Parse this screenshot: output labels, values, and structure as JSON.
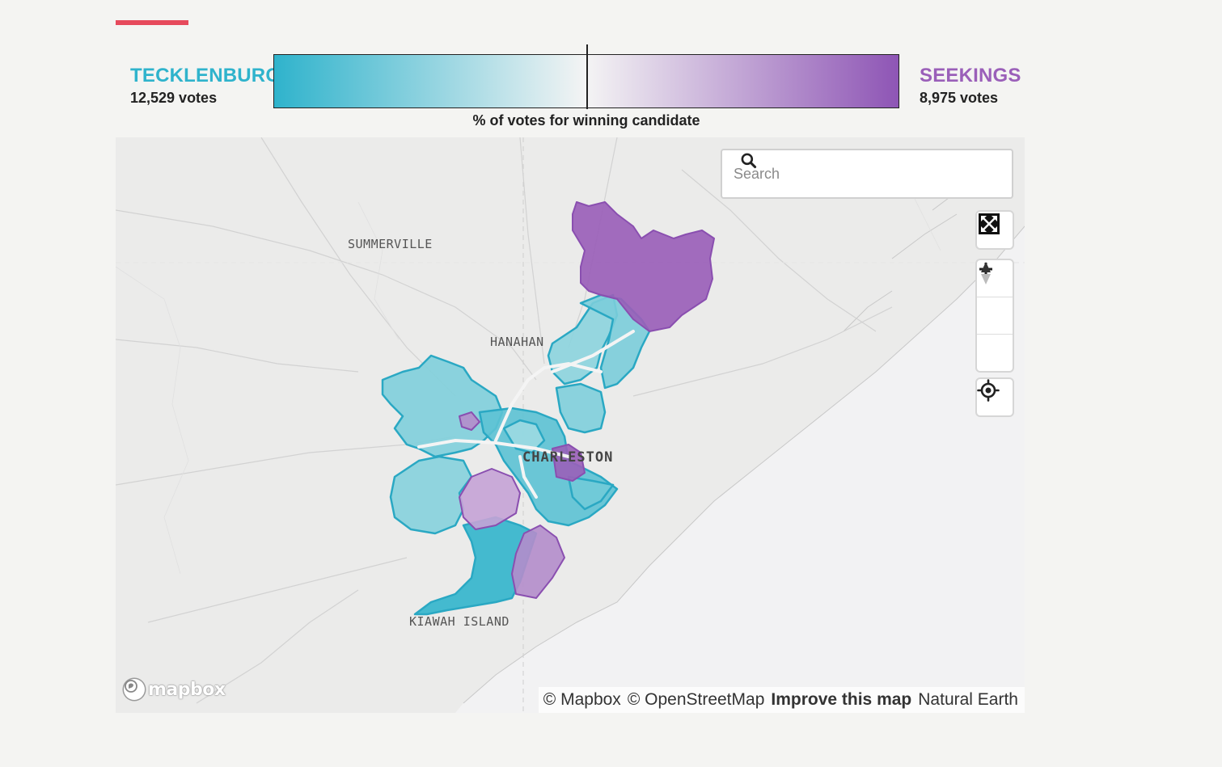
{
  "candidates": {
    "left": {
      "name": "TECKLENBURG",
      "votes": "12,529 votes",
      "color": "#2fb3cc"
    },
    "right": {
      "name": "SEEKINGS",
      "votes": "8,975 votes",
      "color": "#9a5fb9"
    }
  },
  "legend": {
    "caption": "% of votes for winning candidate",
    "colors": {
      "left_strong": "#2fb3cc",
      "neutral": "#f4f4f4",
      "right_strong": "#8e55b5"
    }
  },
  "map": {
    "search": {
      "placeholder": "Search",
      "value": ""
    },
    "places": {
      "summerville": "SUMMERVILLE",
      "hanahan": "HANAHAN",
      "charleston": "CHARLESTON",
      "kiawah": "KIAWAH ISLAND"
    },
    "controls": {
      "fullscreen_icon": "fullscreen-icon",
      "zoom_in_icon": "zoom-in-icon",
      "zoom_out_icon": "zoom-out-icon",
      "compass_icon": "compass-icon",
      "geolocate_icon": "geolocate-icon"
    },
    "logo": "mapbox",
    "attribution": {
      "mapbox": "© Mapbox",
      "osm": "© OpenStreetMap",
      "improve": "Improve this map",
      "natural_earth": "Natural Earth"
    }
  }
}
